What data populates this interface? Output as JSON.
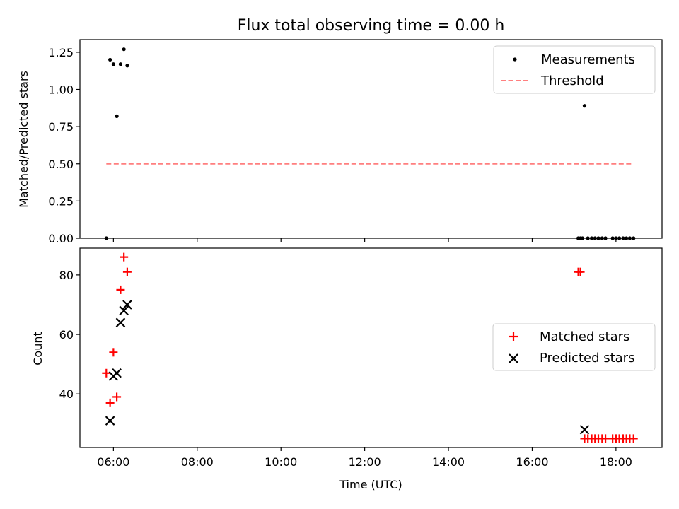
{
  "title": "Flux total observing time = 0.00 h",
  "x_axis": {
    "label": "Time (UTC)",
    "range_hours": [
      5.2,
      19.1
    ],
    "ticks": [
      {
        "h": 6,
        "label": "06:00"
      },
      {
        "h": 8,
        "label": "08:00"
      },
      {
        "h": 10,
        "label": "10:00"
      },
      {
        "h": 12,
        "label": "12:00"
      },
      {
        "h": 14,
        "label": "14:00"
      },
      {
        "h": 16,
        "label": "16:00"
      },
      {
        "h": 18,
        "label": "18:00"
      }
    ]
  },
  "chart_data": [
    {
      "type": "scatter",
      "ylabel": "Matched/Predicted stars",
      "ylim": [
        0,
        1.335
      ],
      "yticks": [
        "0.00",
        "0.25",
        "0.50",
        "0.75",
        "1.00",
        "1.25"
      ],
      "legend_position": "top-right",
      "series": [
        {
          "name": "Measurements",
          "kind": "points",
          "color": "#000000",
          "points": [
            {
              "x": 5.83,
              "y": 0.0
            },
            {
              "x": 5.92,
              "y": 1.2
            },
            {
              "x": 6.0,
              "y": 1.17
            },
            {
              "x": 6.08,
              "y": 0.82
            },
            {
              "x": 6.17,
              "y": 1.17
            },
            {
              "x": 6.25,
              "y": 1.27
            },
            {
              "x": 6.33,
              "y": 1.16
            },
            {
              "x": 17.25,
              "y": 0.89
            },
            {
              "x": 17.1,
              "y": 0.0
            },
            {
              "x": 17.15,
              "y": 0.0
            },
            {
              "x": 17.2,
              "y": 0.0
            },
            {
              "x": 17.33,
              "y": 0.0
            },
            {
              "x": 17.42,
              "y": 0.0
            },
            {
              "x": 17.5,
              "y": 0.0
            },
            {
              "x": 17.58,
              "y": 0.0
            },
            {
              "x": 17.67,
              "y": 0.0
            },
            {
              "x": 17.75,
              "y": 0.0
            },
            {
              "x": 17.92,
              "y": 0.0
            },
            {
              "x": 18.0,
              "y": 0.0
            },
            {
              "x": 18.08,
              "y": 0.0
            },
            {
              "x": 18.17,
              "y": 0.0
            },
            {
              "x": 18.25,
              "y": 0.0
            },
            {
              "x": 18.33,
              "y": 0.0
            },
            {
              "x": 18.42,
              "y": 0.0
            }
          ]
        },
        {
          "name": "Threshold",
          "kind": "dashed-line",
          "color": "#ff7f7f",
          "x_range": [
            5.83,
            18.42
          ],
          "y": 0.5
        }
      ]
    },
    {
      "type": "scatter",
      "ylabel": "Count",
      "ylim": [
        22,
        89
      ],
      "yticks": [
        "40",
        "60",
        "80"
      ],
      "legend_position": "center-right",
      "series": [
        {
          "name": "Matched stars",
          "marker": "plus",
          "color": "#ff0000",
          "points": [
            {
              "x": 5.83,
              "y": 47
            },
            {
              "x": 5.92,
              "y": 37
            },
            {
              "x": 6.0,
              "y": 54
            },
            {
              "x": 6.08,
              "y": 39
            },
            {
              "x": 6.17,
              "y": 75
            },
            {
              "x": 6.25,
              "y": 86
            },
            {
              "x": 6.33,
              "y": 81
            },
            {
              "x": 17.1,
              "y": 81
            },
            {
              "x": 17.15,
              "y": 81
            },
            {
              "x": 17.25,
              "y": 25
            },
            {
              "x": 17.33,
              "y": 25
            },
            {
              "x": 17.42,
              "y": 25
            },
            {
              "x": 17.5,
              "y": 25
            },
            {
              "x": 17.58,
              "y": 25
            },
            {
              "x": 17.67,
              "y": 25
            },
            {
              "x": 17.75,
              "y": 25
            },
            {
              "x": 17.92,
              "y": 25
            },
            {
              "x": 18.0,
              "y": 25
            },
            {
              "x": 18.08,
              "y": 25
            },
            {
              "x": 18.17,
              "y": 25
            },
            {
              "x": 18.25,
              "y": 25
            },
            {
              "x": 18.33,
              "y": 25
            },
            {
              "x": 18.42,
              "y": 25
            }
          ]
        },
        {
          "name": "Predicted stars",
          "marker": "x",
          "color": "#000000",
          "points": [
            {
              "x": 5.92,
              "y": 31
            },
            {
              "x": 6.0,
              "y": 46
            },
            {
              "x": 6.08,
              "y": 47
            },
            {
              "x": 6.17,
              "y": 64
            },
            {
              "x": 6.25,
              "y": 68
            },
            {
              "x": 6.33,
              "y": 70
            },
            {
              "x": 17.25,
              "y": 28
            }
          ]
        }
      ]
    }
  ]
}
